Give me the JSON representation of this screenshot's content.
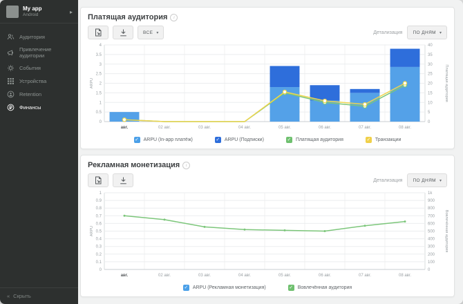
{
  "sidebar": {
    "app_name": "My app",
    "app_platform": "Android",
    "items": [
      {
        "label": "Аудитория",
        "icon": "audience-icon",
        "active": false
      },
      {
        "label": "Привлечение аудитории",
        "icon": "acquisition-icon",
        "active": false
      },
      {
        "label": "События",
        "icon": "events-icon",
        "active": false
      },
      {
        "label": "Устройства",
        "icon": "devices-icon",
        "active": false
      },
      {
        "label": "Retention",
        "icon": "retention-icon",
        "active": false
      },
      {
        "label": "Финансы",
        "icon": "finance-icon",
        "active": true
      }
    ],
    "collapse_label": "Скрыть"
  },
  "panel1": {
    "title": "Платящая аудитория",
    "filter_value": "ВСЕ",
    "detail_label": "Детализация",
    "detail_value": "ПО ДНЯМ"
  },
  "panel2": {
    "title": "Рекламная монетизация",
    "detail_label": "Детализация",
    "detail_value": "ПО ДНЯМ"
  },
  "chart_data": [
    {
      "type": "bar",
      "subtype": "stacked-bar-with-lines",
      "title": "Платящая аудитория",
      "categories": [
        "авг.",
        "02 авг.",
        "03 авг.",
        "04 авг.",
        "05 авг.",
        "06 авг.",
        "07 авг.",
        "08 авг."
      ],
      "left_axis": {
        "label": "ARPU",
        "min": 0,
        "max": 4,
        "step": 0.5
      },
      "right_axis": {
        "label": "Платящая аудитория",
        "min": 0,
        "max": 40,
        "step": 5
      },
      "bar_series": [
        {
          "name": "ARPU (In-app платёж)",
          "color": "#54A1E8",
          "axis": "left",
          "values": [
            0.5,
            0,
            0,
            0,
            1.8,
            1.1,
            1.5,
            2.85
          ]
        },
        {
          "name": "ARPU (Подписки)",
          "color": "#2E6EDB",
          "axis": "left",
          "values": [
            0,
            0,
            0,
            0,
            1.1,
            0.8,
            0.2,
            0.95
          ]
        }
      ],
      "line_series": [
        {
          "name": "Платящая аудитория",
          "color": "#7CC67A",
          "axis": "right",
          "marker": "circle",
          "values": [
            1,
            0,
            0,
            0,
            15,
            10,
            8,
            19
          ]
        },
        {
          "name": "Транзакции",
          "color": "#EDD54F",
          "axis": "right",
          "marker": "circle",
          "values": [
            1,
            0,
            0,
            0,
            15.5,
            10.8,
            9,
            20
          ]
        }
      ],
      "legend": [
        {
          "label": "ARPU (In-app платёж)",
          "color": "#4BA0E8"
        },
        {
          "label": "ARPU (Подписки)",
          "color": "#2E6EDB"
        },
        {
          "label": "Платящая аудитория",
          "color": "#6FC06F"
        },
        {
          "label": "Транзакции",
          "color": "#F0D04A"
        }
      ],
      "grid": true,
      "legend_position": "bottom"
    },
    {
      "type": "line",
      "title": "Рекламная монетизация",
      "categories": [
        "авг.",
        "02 авг.",
        "03 авг.",
        "04 авг.",
        "05 авг.",
        "06 авг.",
        "07 авг.",
        "08 авг."
      ],
      "left_axis": {
        "label": "ARPU",
        "min": 0,
        "max": 1,
        "step": 0.1
      },
      "right_axis": {
        "label": "Вовлечённая аудитория",
        "min": 0,
        "max": 1000,
        "step": 100,
        "kilo": true
      },
      "bar_series": [],
      "line_series": [
        {
          "name": "Вовлечённая аудитория",
          "color": "#7CC67A",
          "axis": "right",
          "marker": "dot",
          "values": [
            700,
            650,
            555,
            520,
            510,
            500,
            570,
            625
          ]
        }
      ],
      "legend": [
        {
          "label": "ARPU (Рекламная монетизация)",
          "color": "#4BA0E8"
        },
        {
          "label": "Вовлечённая аудитория",
          "color": "#6FC06F"
        }
      ],
      "grid": true,
      "legend_position": "bottom"
    }
  ]
}
